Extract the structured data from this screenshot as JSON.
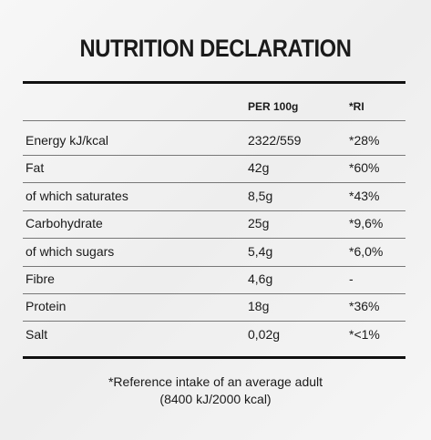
{
  "title": "NUTRITION DECLARATION",
  "table": {
    "header": {
      "per_100g": "PER 100g",
      "ri": "*RI"
    },
    "rows": [
      [
        "Energy kJ/kcal",
        "2322/559",
        "*28%"
      ],
      [
        "Fat",
        "42g",
        "*60%"
      ],
      [
        "of which saturates",
        "8,5g",
        "*43%"
      ],
      [
        "Carbohydrate",
        "25g",
        "*9,6%"
      ],
      [
        "of which sugars",
        "5,4g",
        "*6,0%"
      ],
      [
        "Fibre",
        "4,6g",
        "-"
      ],
      [
        "Protein",
        "18g",
        "*36%"
      ],
      [
        "Salt",
        "0,02g",
        "*<1%"
      ]
    ]
  },
  "footnote": [
    "*Reference intake of an average adult",
    "(8400 kJ/2000 kcal)"
  ]
}
